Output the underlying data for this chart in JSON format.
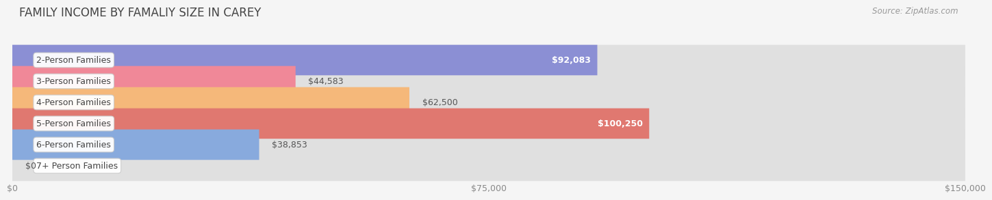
{
  "title": "FAMILY INCOME BY FAMALIY SIZE IN CAREY",
  "source": "Source: ZipAtlas.com",
  "categories": [
    "2-Person Families",
    "3-Person Families",
    "4-Person Families",
    "5-Person Families",
    "6-Person Families",
    "7+ Person Families"
  ],
  "values": [
    92083,
    44583,
    62500,
    100250,
    38853,
    0
  ],
  "bar_colors": [
    "#8b8fd4",
    "#f08898",
    "#f5b87a",
    "#e07870",
    "#88aadd",
    "#c8a8d8"
  ],
  "value_labels": [
    "$92,083",
    "$44,583",
    "$62,500",
    "$100,250",
    "$38,853",
    "$0"
  ],
  "label_inside": [
    true,
    false,
    false,
    true,
    false,
    false
  ],
  "x_ticks": [
    0,
    75000,
    150000
  ],
  "x_tick_labels": [
    "$0",
    "$75,000",
    "$150,000"
  ],
  "xlim": [
    0,
    150000
  ],
  "background_color": "#f5f5f5",
  "bar_bg_color": "#e0e0e0",
  "title_fontsize": 12,
  "source_fontsize": 8.5,
  "label_fontsize": 9,
  "category_fontsize": 9
}
